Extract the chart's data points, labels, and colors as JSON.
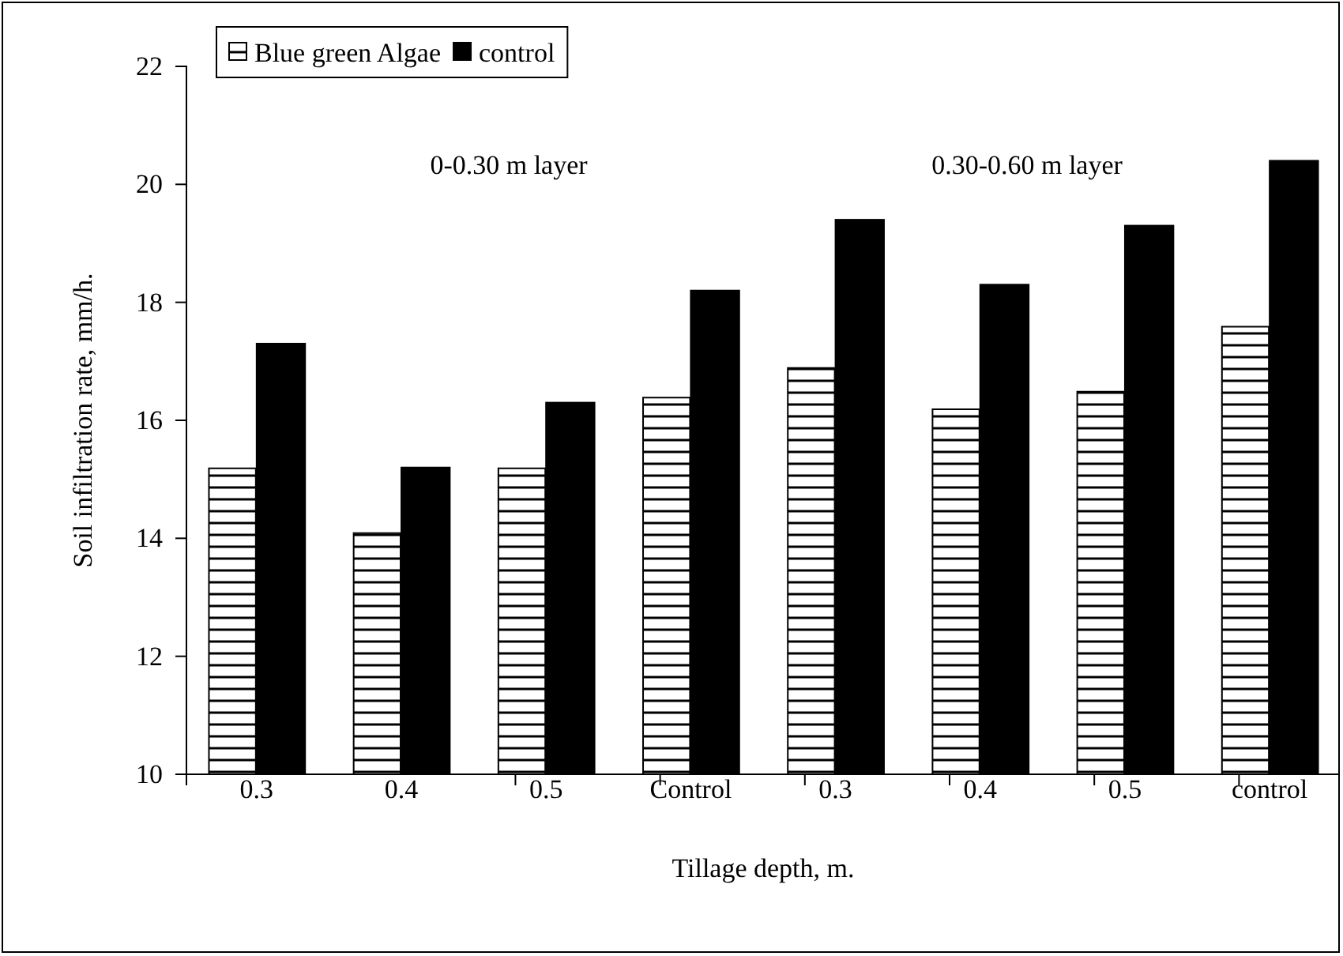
{
  "chart_data": {
    "type": "bar",
    "xlabel": "Tillage depth, m.",
    "ylabel": "Soil infiltration rate, mm/h.",
    "categories": [
      "0.3",
      "0.4",
      "0.5",
      "Control",
      "0.3",
      "0.4",
      "0.5",
      "control"
    ],
    "series": [
      {
        "name": "Blue green Algae",
        "color": "#ffffff",
        "values": [
          15.2,
          14.1,
          15.2,
          16.4,
          16.9,
          16.2,
          16.5,
          17.6
        ]
      },
      {
        "name": "control",
        "color": "#000000",
        "values": [
          17.3,
          15.2,
          16.3,
          18.2,
          19.4,
          18.3,
          19.3,
          20.4
        ]
      }
    ],
    "annotations": [
      "0-0.30 m layer",
      "0.30-0.60 m layer"
    ],
    "ylim": [
      10,
      22
    ],
    "yticks": [
      10,
      12,
      14,
      16,
      18,
      20,
      22
    ],
    "legend": "top left",
    "grid": false
  }
}
